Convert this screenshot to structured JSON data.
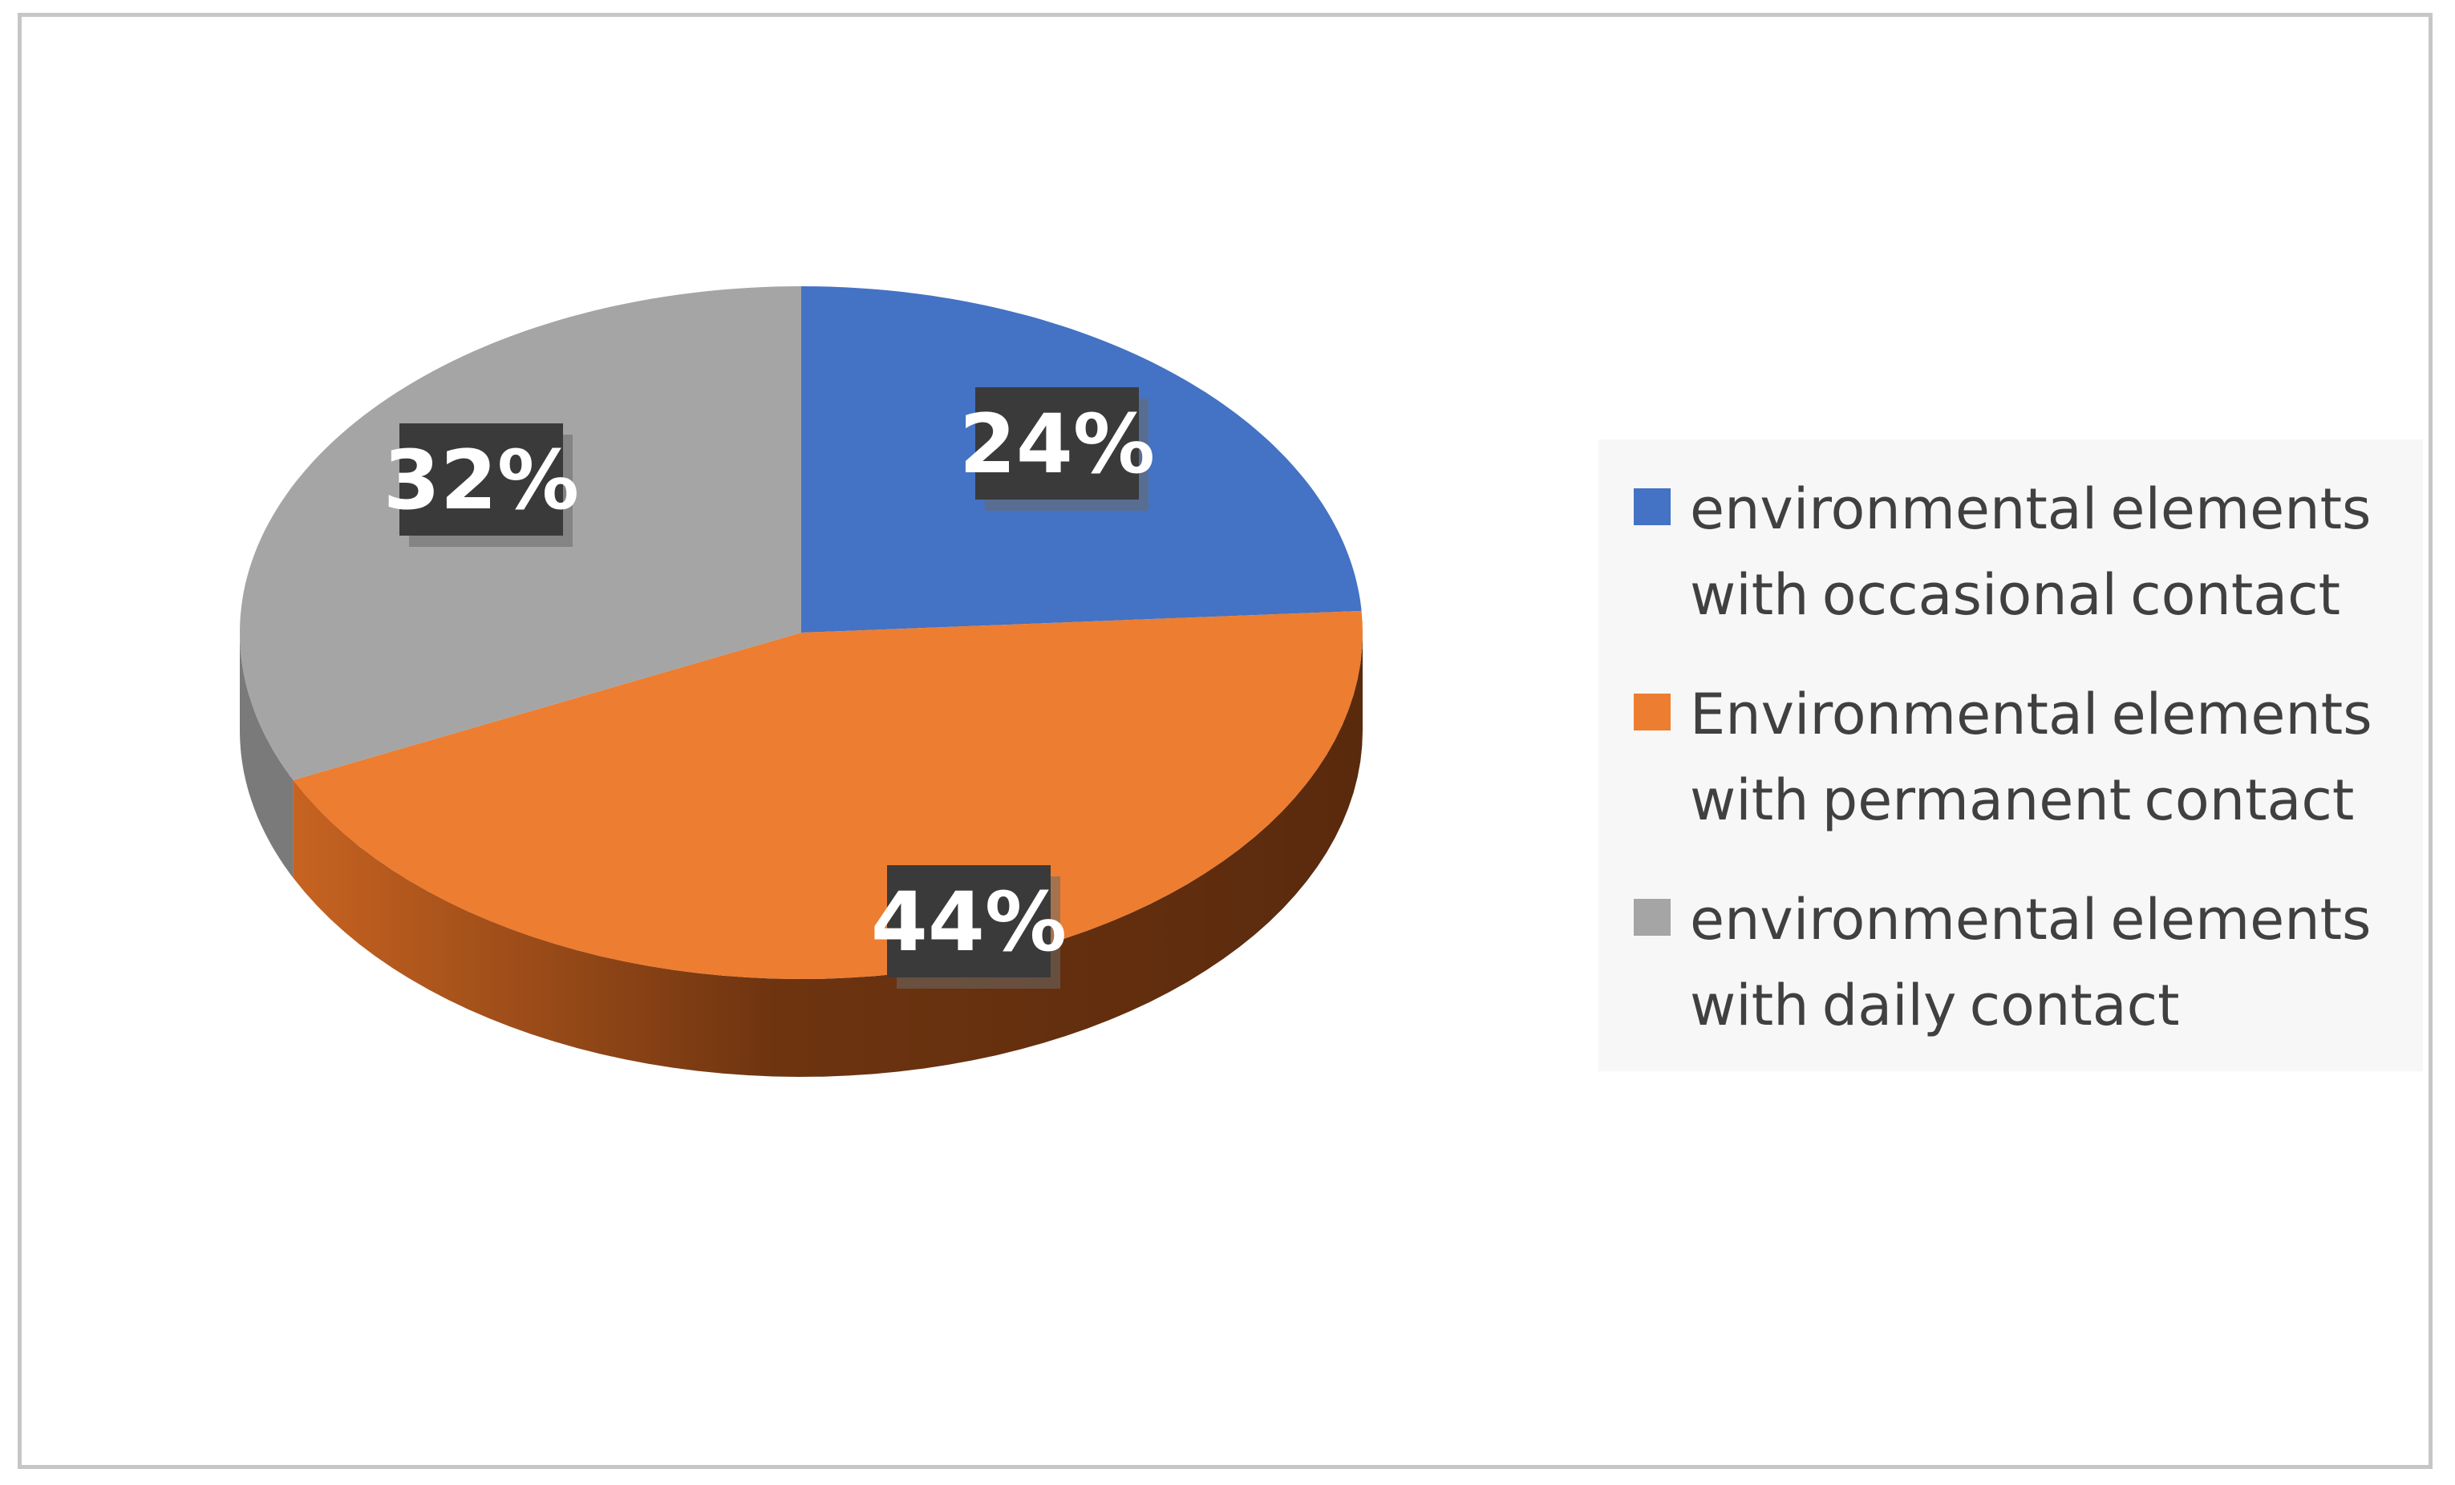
{
  "chart_data": {
    "type": "pie",
    "title": "",
    "slices": [
      {
        "label": "environmental elements with occasional contact",
        "value": 24,
        "display": "24%",
        "color": "#4472c4",
        "side_color": "#2e4f8a"
      },
      {
        "label": "Environmental elements with permanent contact",
        "value": 44,
        "display": "44%",
        "color": "#ed7d31",
        "side_color": "#6b3410"
      },
      {
        "label": "environmental elements with daily contact",
        "value": 32,
        "display": "32%",
        "color": "#a5a5a5",
        "side_color": "#7a7a7a"
      }
    ],
    "style": "3d",
    "legend_position": "right",
    "label_background": "#3a3a3a"
  }
}
